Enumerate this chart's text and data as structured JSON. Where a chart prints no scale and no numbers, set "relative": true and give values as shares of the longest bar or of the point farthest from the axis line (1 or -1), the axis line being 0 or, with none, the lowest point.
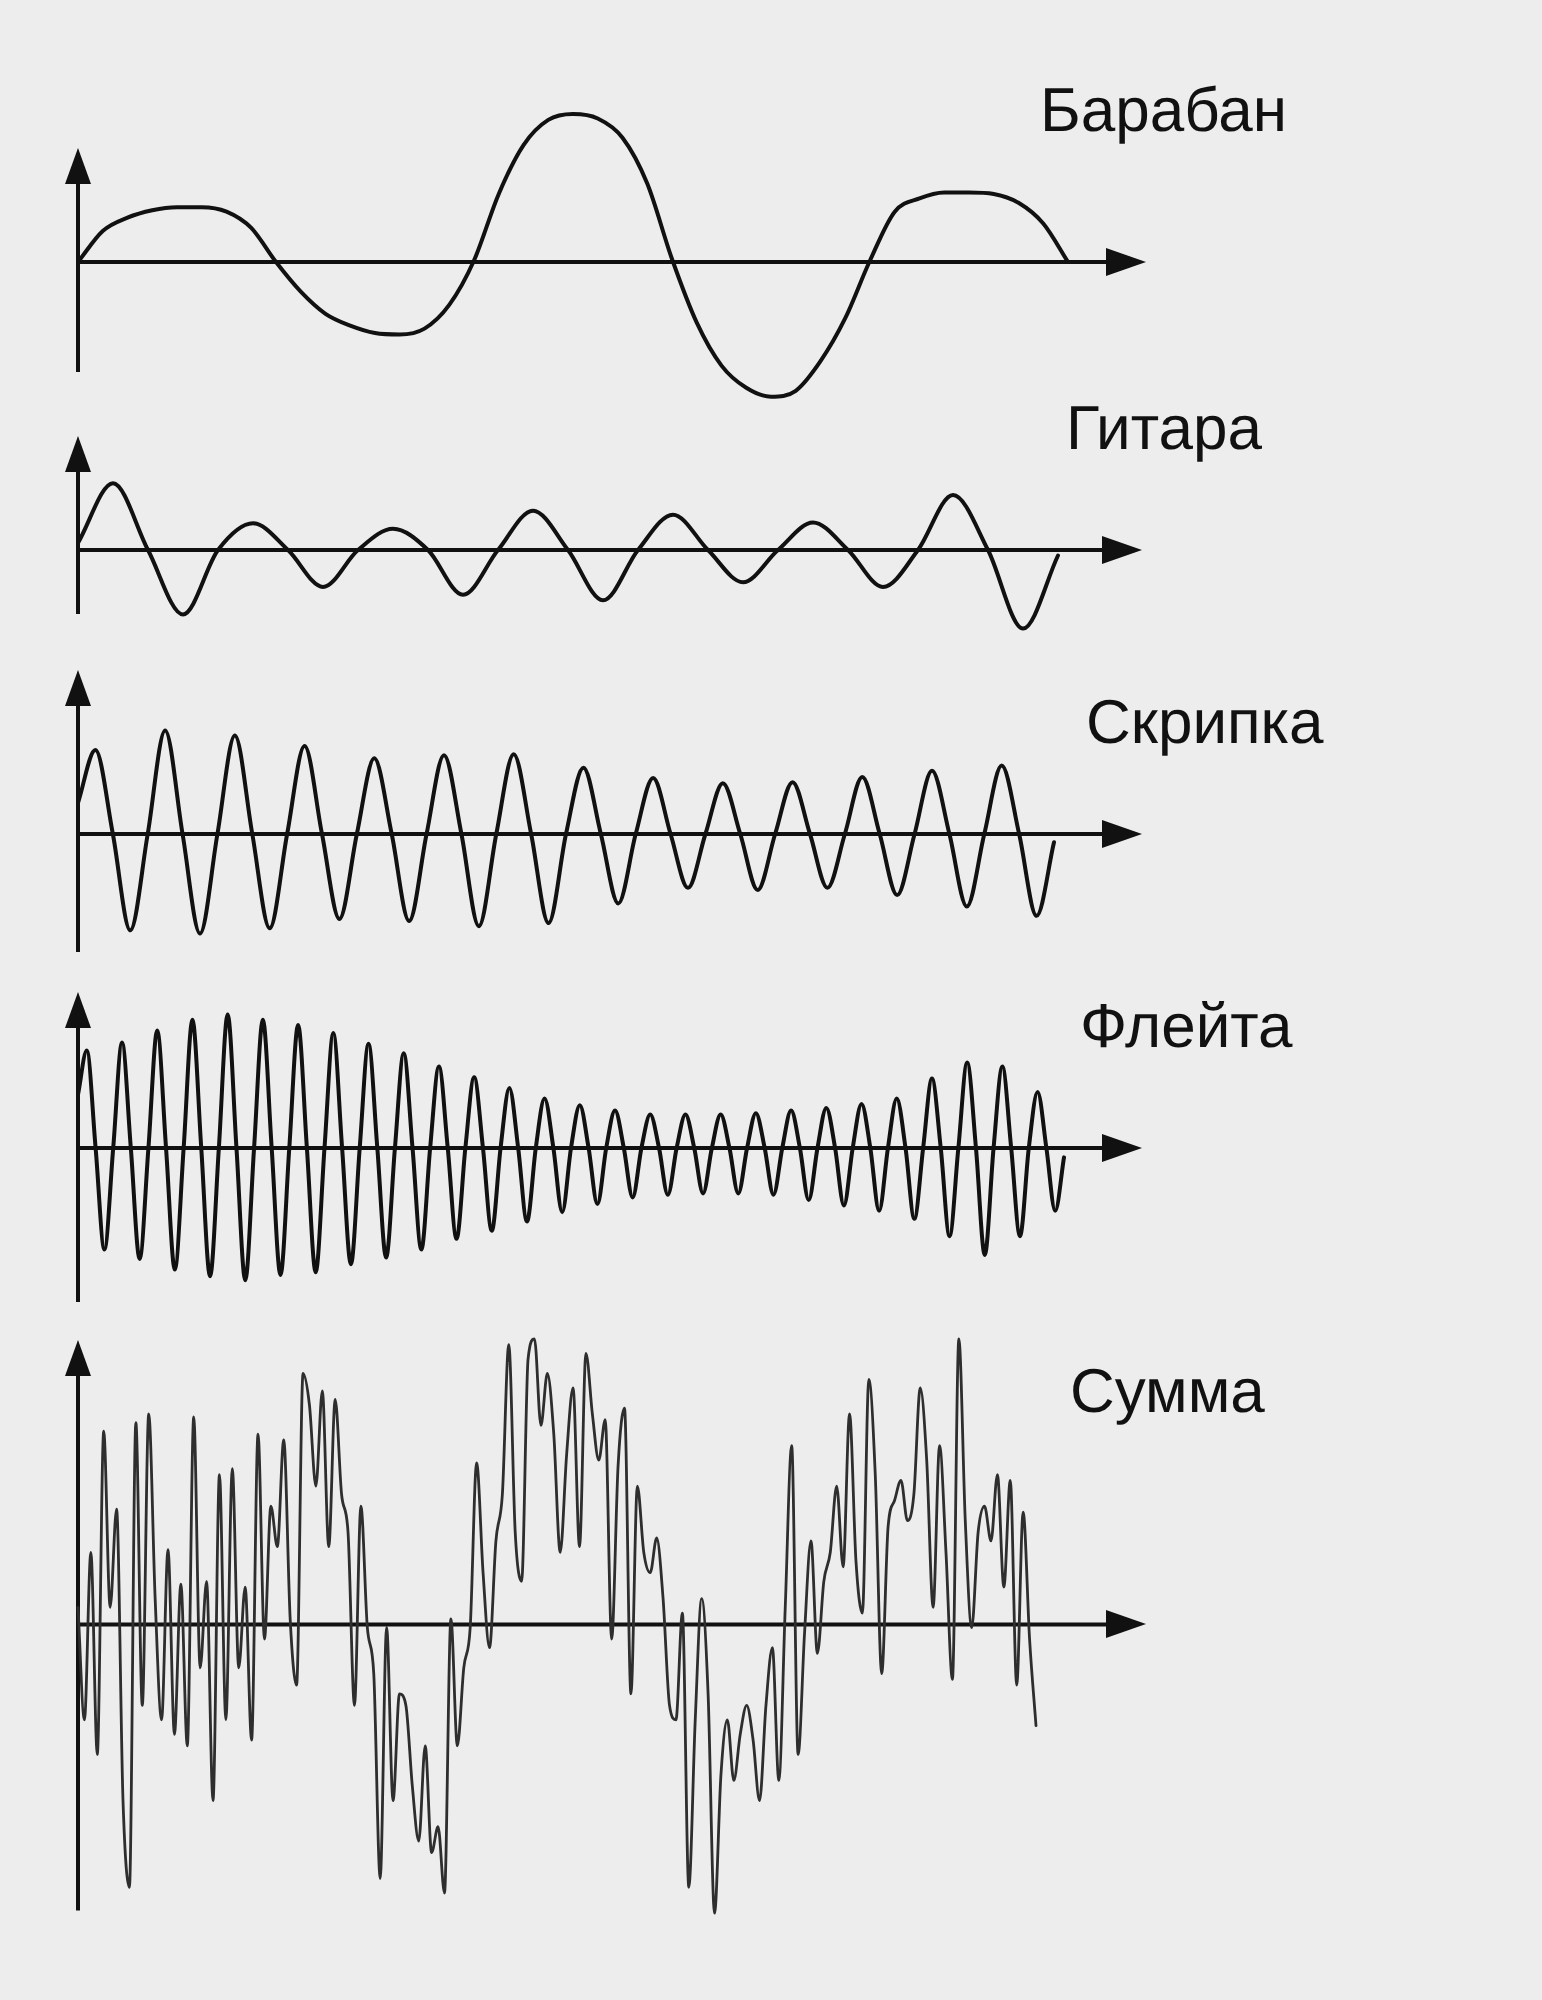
{
  "chart_data": [
    {
      "type": "line",
      "title": "Барабан",
      "relative": true,
      "tick_labels": false,
      "color": "#111111",
      "categories": [
        null,
        null,
        null,
        null,
        null,
        null,
        null,
        null,
        null,
        null,
        null,
        null,
        null,
        null,
        null,
        null,
        null,
        null,
        null,
        null,
        null,
        null,
        null,
        null,
        null,
        null,
        null,
        null,
        null,
        null,
        null,
        null,
        null,
        null,
        null,
        null,
        null,
        null,
        null,
        null,
        null
      ],
      "values": [
        0,
        0.21,
        0.3,
        0.35,
        0.37,
        0.37,
        0.34,
        0.23,
        0,
        -0.2,
        -0.35,
        -0.43,
        -0.48,
        -0.49,
        -0.45,
        -0.29,
        0.01,
        0.46,
        0.79,
        0.96,
        1,
        0.97,
        0.84,
        0.53,
        0.02,
        -0.41,
        -0.7,
        -0.85,
        -0.91,
        -0.87,
        -0.67,
        -0.38,
        0.01,
        0.34,
        0.43,
        0.47,
        0.47,
        0.46,
        0.4,
        0.26,
        0
      ]
    },
    {
      "type": "line",
      "title": "Гитара",
      "relative": true,
      "tick_labels": false,
      "color": "#111111",
      "categories": [
        null,
        null,
        null,
        null,
        null,
        null,
        null,
        null,
        null,
        null,
        null,
        null,
        null,
        null,
        null,
        null,
        null,
        null,
        null,
        null,
        null,
        null,
        null,
        null,
        null,
        null,
        null,
        null,
        null
      ],
      "values": [
        0.09,
        0.85,
        0,
        -0.82,
        0,
        0.34,
        0,
        -0.47,
        0,
        0.27,
        0,
        -0.57,
        0,
        0.5,
        0,
        -0.64,
        0,
        0.45,
        0,
        -0.41,
        0,
        0.35,
        0,
        -0.47,
        0,
        0.7,
        0,
        -1,
        -0.07
      ]
    },
    {
      "type": "line",
      "title": "Скрипка",
      "relative": true,
      "tick_labels": false,
      "color": "#111111",
      "categories": [
        null,
        null,
        null,
        null,
        null,
        null,
        null,
        null,
        null,
        null,
        null,
        null,
        null,
        null,
        null,
        null,
        null,
        null,
        null,
        null,
        null,
        null,
        null,
        null,
        null,
        null,
        null,
        null,
        null,
        null,
        null,
        null,
        null,
        null,
        null,
        null,
        null,
        null,
        null,
        null,
        null,
        null,
        null,
        null,
        null,
        null,
        null,
        null,
        null,
        null,
        null,
        null,
        null,
        null,
        null,
        null,
        null
      ],
      "values": [
        0.3,
        0.81,
        0,
        -0.93,
        0,
        1,
        0,
        -0.96,
        0,
        0.95,
        0,
        -0.91,
        0,
        0.85,
        0,
        -0.82,
        0,
        0.73,
        0,
        -0.84,
        0,
        0.76,
        0,
        -0.89,
        0,
        0.77,
        0,
        -0.86,
        0,
        0.64,
        0,
        -0.67,
        0,
        0.54,
        0,
        -0.52,
        0,
        0.49,
        0,
        -0.54,
        0,
        0.5,
        0,
        -0.52,
        0,
        0.55,
        0,
        -0.59,
        0,
        0.61,
        0,
        -0.7,
        0,
        0.66,
        0,
        -0.79,
        -0.08
      ]
    },
    {
      "type": "line",
      "title": "Флейта",
      "relative": true,
      "tick_labels": false,
      "color": "#111111",
      "categories": [
        null,
        null,
        null,
        null,
        null,
        null,
        null,
        null,
        null,
        null,
        null,
        null,
        null,
        null,
        null,
        null,
        null,
        null,
        null,
        null,
        null,
        null,
        null,
        null,
        null,
        null,
        null,
        null,
        null,
        null,
        null,
        null,
        null,
        null,
        null,
        null,
        null,
        null,
        null,
        null,
        null,
        null,
        null,
        null,
        null,
        null,
        null,
        null,
        null,
        null,
        null,
        null,
        null,
        null,
        null,
        null,
        null,
        null,
        null,
        null,
        null,
        null,
        null,
        null,
        null,
        null,
        null,
        null,
        null,
        null,
        null,
        null,
        null,
        null,
        null,
        null,
        null,
        null,
        null,
        null,
        null,
        null,
        null,
        null,
        null,
        null,
        null,
        null,
        null,
        null,
        null,
        null,
        null,
        null,
        null,
        null,
        null,
        null,
        null,
        null,
        null,
        null,
        null,
        null,
        null,
        null,
        null,
        null,
        null,
        null,
        null,
        null,
        null
      ],
      "values": [
        0.4,
        0.73,
        0,
        -0.76,
        0,
        0.79,
        0,
        -0.83,
        0,
        0.88,
        0,
        -0.91,
        0,
        0.96,
        0,
        -0.96,
        0,
        1,
        0,
        -0.99,
        0,
        0.96,
        0,
        -0.95,
        0,
        0.92,
        0,
        -0.93,
        0,
        0.86,
        0,
        -0.87,
        0,
        0.78,
        0,
        -0.82,
        0,
        0.71,
        0,
        -0.76,
        0,
        0.61,
        0,
        -0.68,
        0,
        0.53,
        0,
        -0.62,
        0,
        0.45,
        0,
        -0.55,
        0,
        0.37,
        0,
        -0.48,
        0,
        0.32,
        0,
        -0.42,
        0,
        0.28,
        0,
        -0.37,
        0,
        0.25,
        0,
        -0.35,
        0,
        0.25,
        0,
        -0.34,
        0,
        0.25,
        0,
        -0.34,
        0,
        0.26,
        0,
        -0.35,
        0,
        0.28,
        0,
        -0.39,
        0,
        0.3,
        0,
        -0.43,
        0,
        0.33,
        0,
        -0.47,
        0,
        0.37,
        0,
        -0.53,
        0,
        0.52,
        0,
        -0.66,
        0,
        0.64,
        0,
        -0.8,
        0,
        0.61,
        0,
        -0.66,
        0,
        0.42,
        0,
        -0.47,
        -0.07
      ]
    },
    {
      "type": "line",
      "title": "Сумма",
      "relative": true,
      "tick_labels": false,
      "color": "#2e2e2e",
      "categories": [
        null,
        null,
        null,
        null,
        null,
        null,
        null,
        null,
        null,
        null,
        null,
        null,
        null,
        null,
        null,
        null,
        null,
        null,
        null,
        null,
        null,
        null,
        null,
        null,
        null,
        null,
        null,
        null,
        null,
        null,
        null,
        null,
        null,
        null,
        null,
        null,
        null,
        null,
        null,
        null,
        null,
        null,
        null,
        null,
        null,
        null,
        null,
        null,
        null,
        null,
        null,
        null,
        null,
        null,
        null,
        null,
        null,
        null,
        null,
        null,
        null,
        null,
        null,
        null,
        null,
        null,
        null,
        null,
        null,
        null,
        null,
        null,
        null,
        null,
        null,
        null,
        null,
        null,
        null,
        null,
        null,
        null,
        null,
        null,
        null,
        null,
        null,
        null,
        null,
        null,
        null,
        null,
        null,
        null,
        null,
        null,
        null,
        null,
        null,
        null,
        null,
        null,
        null,
        null,
        null,
        null,
        null,
        null,
        null,
        null,
        null,
        null,
        null,
        null,
        null,
        null,
        null,
        null,
        null,
        null,
        null,
        null,
        null,
        null,
        null,
        null,
        null,
        null,
        null,
        null,
        null,
        null,
        null,
        null,
        null,
        null,
        null,
        null,
        null,
        null,
        null,
        null,
        null,
        null,
        null,
        null,
        null,
        null,
        null,
        null
      ],
      "values": [
        0.06,
        -0.33,
        0.25,
        -0.45,
        0.67,
        0.06,
        0.4,
        -0.61,
        -0.91,
        0.7,
        -0.28,
        0.73,
        0.09,
        -0.33,
        0.26,
        -0.38,
        0.14,
        -0.42,
        0.72,
        -0.15,
        0.15,
        -0.61,
        0.52,
        -0.33,
        0.54,
        -0.15,
        0.13,
        -0.4,
        0.66,
        -0.05,
        0.41,
        0.27,
        0.64,
        0.02,
        -0.21,
        0.87,
        0.76,
        0.48,
        0.81,
        0.27,
        0.78,
        0.45,
        0.32,
        -0.28,
        0.41,
        -0.01,
        -0.17,
        -0.88,
        -0.01,
        -0.61,
        -0.24,
        -0.28,
        -0.56,
        -0.75,
        -0.42,
        -0.79,
        -0.7,
        -0.93,
        0.02,
        -0.42,
        -0.15,
        -0.01,
        0.56,
        0.18,
        -0.08,
        0.29,
        0.45,
        0.97,
        0.32,
        0.15,
        0.92,
        0.99,
        0.69,
        0.87,
        0.66,
        0.25,
        0.59,
        0.82,
        0.27,
        0.94,
        0.73,
        0.57,
        0.71,
        -0.05,
        0.55,
        0.75,
        -0.24,
        0.48,
        0.25,
        0.18,
        0.3,
        0.09,
        -0.28,
        -0.33,
        0.04,
        -0.91,
        -0.33,
        0.09,
        -0.24,
        -1,
        -0.52,
        -0.33,
        -0.54,
        -0.38,
        -0.28,
        -0.4,
        -0.61,
        -0.28,
        -0.08,
        -0.54,
        0.06,
        0.62,
        -0.45,
        -0.03,
        0.29,
        -0.1,
        0.15,
        0.25,
        0.48,
        0.2,
        0.73,
        0.22,
        0.04,
        0.85,
        0.52,
        -0.17,
        0.34,
        0.43,
        0.5,
        0.36,
        0.45,
        0.82,
        0.57,
        0.06,
        0.62,
        0.25,
        -0.19,
        0.99,
        0.36,
        -0.01,
        0.32,
        0.41,
        0.29,
        0.52,
        0.13,
        0.5,
        -0.21,
        0.39,
        -0.05,
        -0.35
      ]
    }
  ]
}
